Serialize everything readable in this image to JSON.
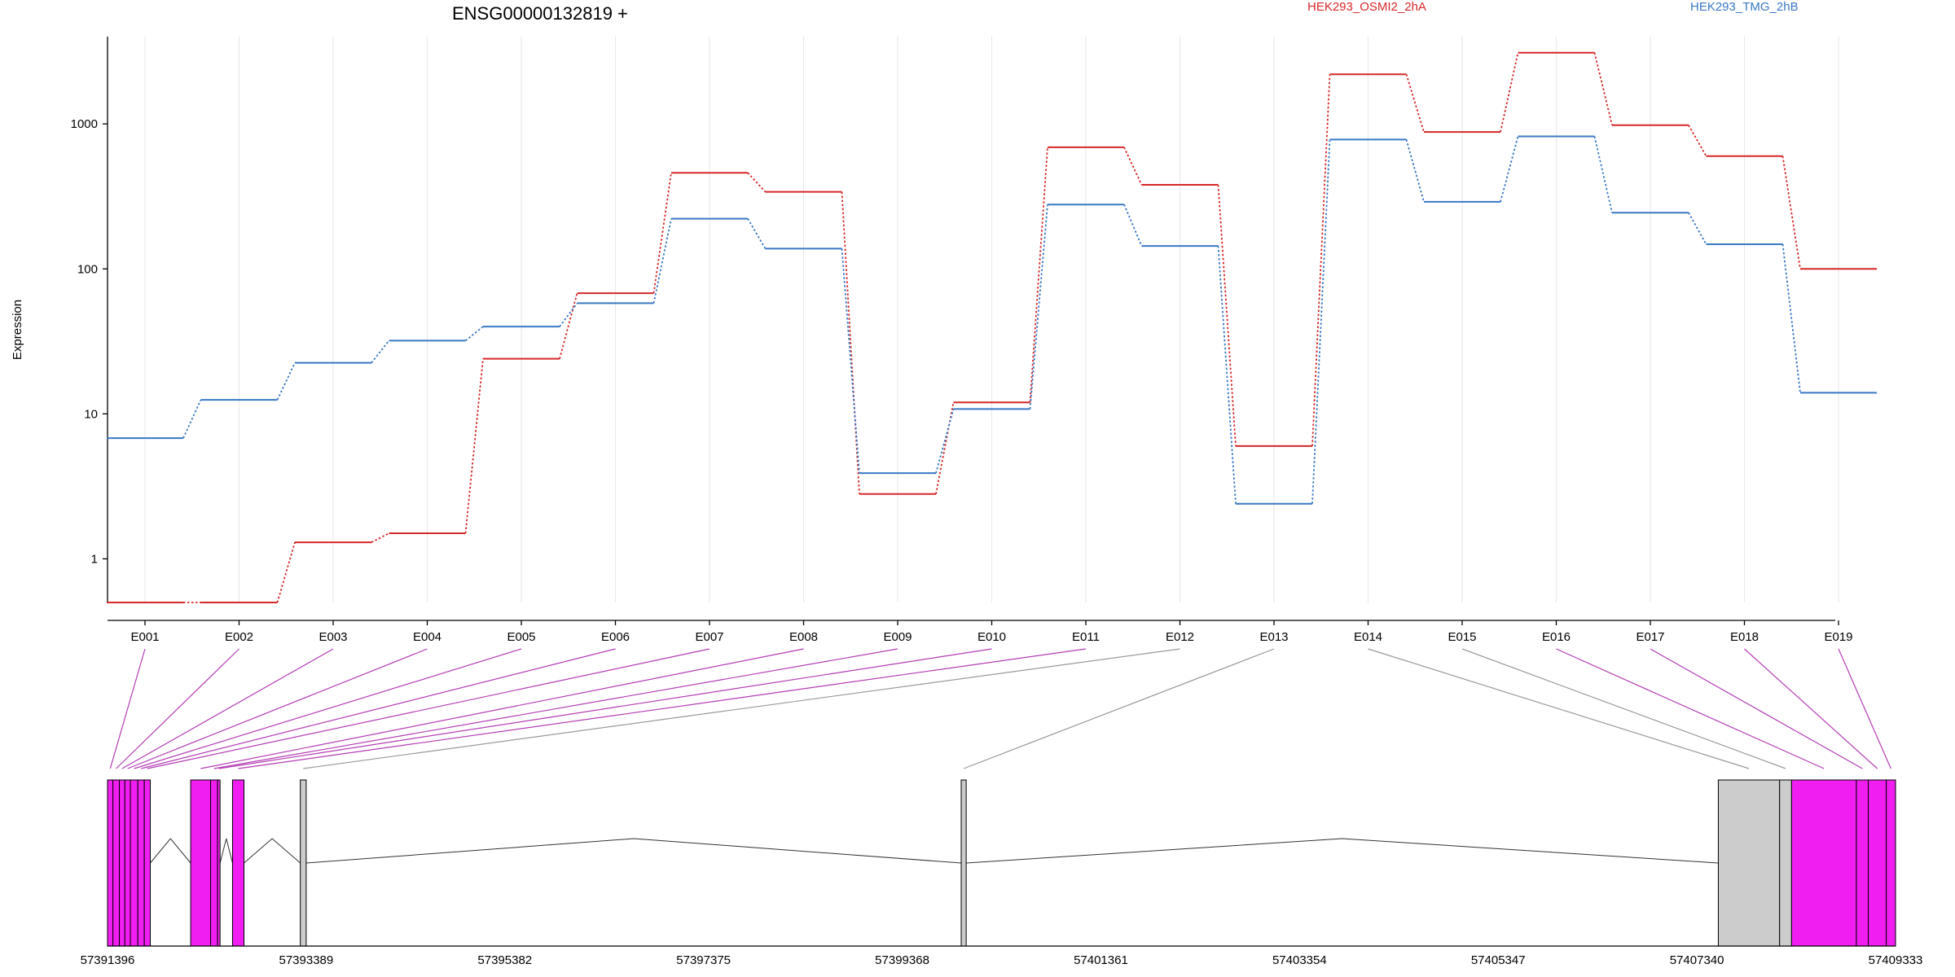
{
  "chart_data": {
    "type": "line",
    "title": "ENSG00000132819 +",
    "ylabel": "Expression",
    "yscale": "log",
    "ylim": [
      0.5,
      4000
    ],
    "yticks": [
      1,
      10,
      100,
      1000
    ],
    "ytick_labels": [
      "1",
      "10",
      "100",
      "1000"
    ],
    "categories": [
      "E001",
      "E002",
      "E003",
      "E004",
      "E005",
      "E006",
      "E007",
      "E008",
      "E009",
      "E010",
      "E011",
      "E012",
      "E013",
      "E014",
      "E015",
      "E016",
      "E017",
      "E018",
      "E019"
    ],
    "series": [
      {
        "name": "HEK293_OSMI2_2hA",
        "color": "#d62728",
        "values": [
          0.5,
          0.5,
          1.3,
          1.5,
          24,
          68,
          460,
          340,
          2.8,
          12,
          690,
          380,
          6,
          2200,
          880,
          3100,
          980,
          600,
          100
        ]
      },
      {
        "name": "HEK293_TMG_2hB",
        "color": "#3a78c4",
        "values": [
          6.8,
          12.5,
          22.5,
          32,
          40,
          58,
          222,
          138,
          3.9,
          10.8,
          278,
          144,
          2.4,
          780,
          290,
          820,
          244,
          148,
          14
        ]
      }
    ],
    "grid": "vertical",
    "legend": "top"
  },
  "gene_model": {
    "coordinate_labels": [
      "57391396",
      "57393389",
      "57395382",
      "57397375",
      "57399368",
      "57401361",
      "57403354",
      "57405347",
      "57407340",
      "57409333"
    ],
    "coord_range": [
      57391396,
      57409333
    ],
    "exon_highlight_color": "#f01ef0",
    "exon_other_color": "#cccccc",
    "connector_highlight_color": "#b43cb4",
    "connector_other_color": "#9a9a9a",
    "exons": [
      {
        "id": "E001",
        "start": 57391396,
        "end": 57391450,
        "highlight": true
      },
      {
        "id": "E002",
        "start": 57391450,
        "end": 57391515,
        "highlight": true
      },
      {
        "id": "E003",
        "start": 57391515,
        "end": 57391570,
        "highlight": true
      },
      {
        "id": "E004",
        "start": 57391570,
        "end": 57391625,
        "highlight": true
      },
      {
        "id": "E005",
        "start": 57391625,
        "end": 57391700,
        "highlight": true
      },
      {
        "id": "E006",
        "start": 57391700,
        "end": 57391765,
        "highlight": true
      },
      {
        "id": "E007",
        "start": 57391765,
        "end": 57391825,
        "highlight": true
      },
      {
        "id": "E008",
        "start": 57392230,
        "end": 57392430,
        "highlight": true
      },
      {
        "id": "E009",
        "start": 57392430,
        "end": 57392500,
        "highlight": true
      },
      {
        "id": "E010",
        "start": 57392500,
        "end": 57392525,
        "highlight": true
      },
      {
        "id": "E011",
        "start": 57392650,
        "end": 57392765,
        "highlight": true
      },
      {
        "id": "E012",
        "start": 57393330,
        "end": 57393389,
        "highlight": false
      },
      {
        "id": "E013",
        "start": 57399960,
        "end": 57400010,
        "highlight": false
      },
      {
        "id": "E014",
        "start": 57407555,
        "end": 57408170,
        "highlight": false
      },
      {
        "id": "E015",
        "start": 57408170,
        "end": 57408290,
        "highlight": false
      },
      {
        "id": "E016",
        "start": 57408290,
        "end": 57408940,
        "highlight": true
      },
      {
        "id": "E017",
        "start": 57408940,
        "end": 57409060,
        "highlight": true
      },
      {
        "id": "E018",
        "start": 57409060,
        "end": 57409240,
        "highlight": true
      },
      {
        "id": "E019",
        "start": 57409240,
        "end": 57409333,
        "highlight": true
      }
    ]
  }
}
